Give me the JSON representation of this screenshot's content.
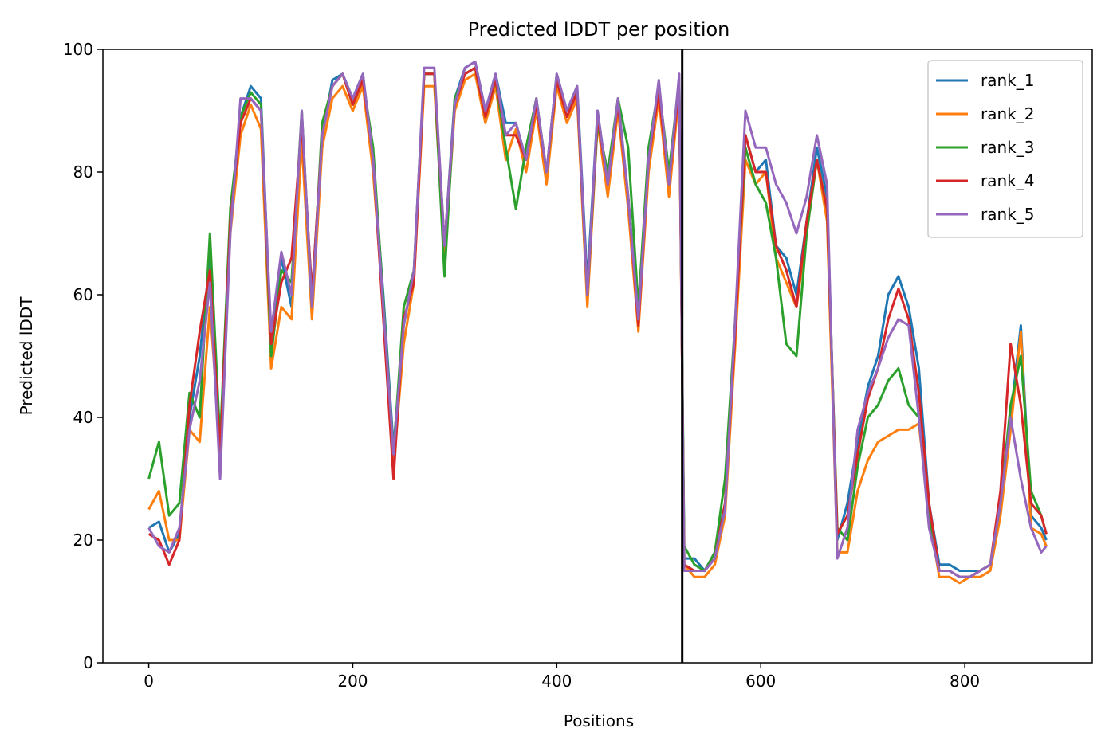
{
  "chart_data": {
    "type": "line",
    "title": "Predicted lDDT per position",
    "xlabel": "Positions",
    "ylabel": "Predicted lDDT",
    "xlim": [
      -45,
      925
    ],
    "ylim": [
      0,
      100
    ],
    "xticks": [
      0,
      200,
      400,
      600,
      800
    ],
    "yticks": [
      0,
      20,
      40,
      60,
      80,
      100
    ],
    "grid": false,
    "legend_position": "top-right",
    "chain_boundary_x": 523,
    "chain_boundary_color": "#000000",
    "colors": [
      "#1f77b4",
      "#ff7f0e",
      "#2ca02c",
      "#d62728",
      "#9467bd"
    ],
    "x": [
      0,
      10,
      20,
      30,
      40,
      50,
      60,
      70,
      80,
      90,
      100,
      110,
      120,
      130,
      140,
      150,
      160,
      170,
      180,
      190,
      200,
      210,
      220,
      230,
      240,
      250,
      260,
      270,
      280,
      290,
      300,
      310,
      320,
      330,
      340,
      350,
      360,
      370,
      380,
      390,
      400,
      410,
      420,
      430,
      440,
      450,
      460,
      470,
      480,
      490,
      500,
      510,
      520,
      525,
      535,
      545,
      555,
      565,
      575,
      585,
      595,
      605,
      615,
      625,
      635,
      645,
      655,
      665,
      675,
      685,
      695,
      705,
      715,
      725,
      735,
      745,
      755,
      765,
      775,
      785,
      795,
      805,
      815,
      825,
      835,
      845,
      855,
      865,
      875,
      880
    ],
    "series": [
      {
        "name": "rank_1",
        "values": [
          22,
          23,
          18,
          21,
          40,
          50,
          66,
          33,
          72,
          89,
          94,
          92,
          52,
          66,
          58,
          88,
          60,
          86,
          95,
          96,
          92,
          96,
          82,
          60,
          35,
          55,
          64,
          96,
          96,
          68,
          92,
          97,
          98,
          90,
          96,
          88,
          88,
          82,
          92,
          80,
          96,
          90,
          94,
          62,
          90,
          78,
          92,
          76,
          56,
          82,
          94,
          78,
          95,
          17,
          17,
          15,
          18,
          26,
          55,
          86,
          80,
          82,
          68,
          66,
          60,
          72,
          84,
          76,
          20,
          26,
          36,
          45,
          50,
          60,
          63,
          58,
          48,
          26,
          16,
          16,
          15,
          15,
          15,
          16,
          25,
          40,
          55,
          24,
          22,
          20
        ]
      },
      {
        "name": "rank_2",
        "values": [
          25,
          28,
          20,
          20,
          38,
          36,
          58,
          35,
          70,
          86,
          91,
          87,
          48,
          58,
          56,
          85,
          56,
          84,
          92,
          94,
          90,
          94,
          80,
          58,
          32,
          52,
          62,
          94,
          94,
          66,
          90,
          95,
          96,
          88,
          94,
          82,
          87,
          80,
          90,
          78,
          94,
          88,
          92,
          58,
          88,
          76,
          90,
          74,
          54,
          80,
          92,
          76,
          93,
          16,
          14,
          14,
          16,
          24,
          52,
          82,
          78,
          80,
          66,
          62,
          58,
          70,
          82,
          72,
          18,
          18,
          28,
          33,
          36,
          37,
          38,
          38,
          39,
          24,
          14,
          14,
          13,
          14,
          14,
          15,
          24,
          38,
          54,
          22,
          21,
          19
        ]
      },
      {
        "name": "rank_3",
        "values": [
          30,
          36,
          24,
          26,
          44,
          40,
          70,
          36,
          74,
          89,
          93,
          91,
          50,
          64,
          62,
          90,
          58,
          88,
          94,
          96,
          91,
          95,
          84,
          59,
          34,
          58,
          64,
          96,
          96,
          63,
          92,
          96,
          97,
          89,
          95,
          84,
          74,
          84,
          92,
          80,
          95,
          90,
          93,
          60,
          88,
          80,
          92,
          84,
          58,
          84,
          94,
          80,
          95,
          19,
          16,
          15,
          18,
          30,
          56,
          84,
          78,
          75,
          66,
          52,
          50,
          70,
          82,
          74,
          22,
          20,
          32,
          40,
          42,
          46,
          48,
          42,
          40,
          24,
          15,
          15,
          14,
          14,
          15,
          16,
          26,
          42,
          50,
          28,
          24,
          21
        ]
      },
      {
        "name": "rank_4",
        "values": [
          21,
          20,
          16,
          20,
          42,
          54,
          64,
          34,
          72,
          88,
          92,
          90,
          52,
          62,
          66,
          88,
          60,
          86,
          94,
          96,
          91,
          95,
          82,
          56,
          30,
          56,
          62,
          96,
          96,
          68,
          91,
          96,
          97,
          89,
          95,
          86,
          86,
          82,
          91,
          80,
          95,
          89,
          93,
          60,
          89,
          78,
          91,
          76,
          55,
          82,
          93,
          78,
          94,
          16,
          15,
          15,
          17,
          26,
          54,
          86,
          80,
          80,
          68,
          64,
          58,
          72,
          82,
          74,
          21,
          24,
          34,
          43,
          48,
          56,
          61,
          56,
          44,
          26,
          15,
          15,
          14,
          14,
          15,
          16,
          28,
          52,
          42,
          26,
          24,
          21
        ]
      },
      {
        "name": "rank_5",
        "values": [
          22,
          19,
          18,
          22,
          38,
          46,
          62,
          30,
          70,
          92,
          92,
          90,
          54,
          67,
          60,
          90,
          58,
          86,
          94,
          96,
          92,
          96,
          82,
          58,
          34,
          55,
          64,
          97,
          97,
          68,
          91,
          97,
          98,
          90,
          96,
          86,
          88,
          82,
          92,
          80,
          96,
          90,
          94,
          60,
          90,
          78,
          92,
          76,
          56,
          82,
          95,
          78,
          96,
          15,
          15,
          15,
          17,
          25,
          56,
          90,
          84,
          84,
          78,
          75,
          70,
          76,
          86,
          78,
          17,
          22,
          38,
          44,
          48,
          53,
          56,
          55,
          40,
          22,
          15,
          15,
          14,
          14,
          15,
          16,
          26,
          40,
          30,
          22,
          18,
          19
        ]
      }
    ]
  }
}
